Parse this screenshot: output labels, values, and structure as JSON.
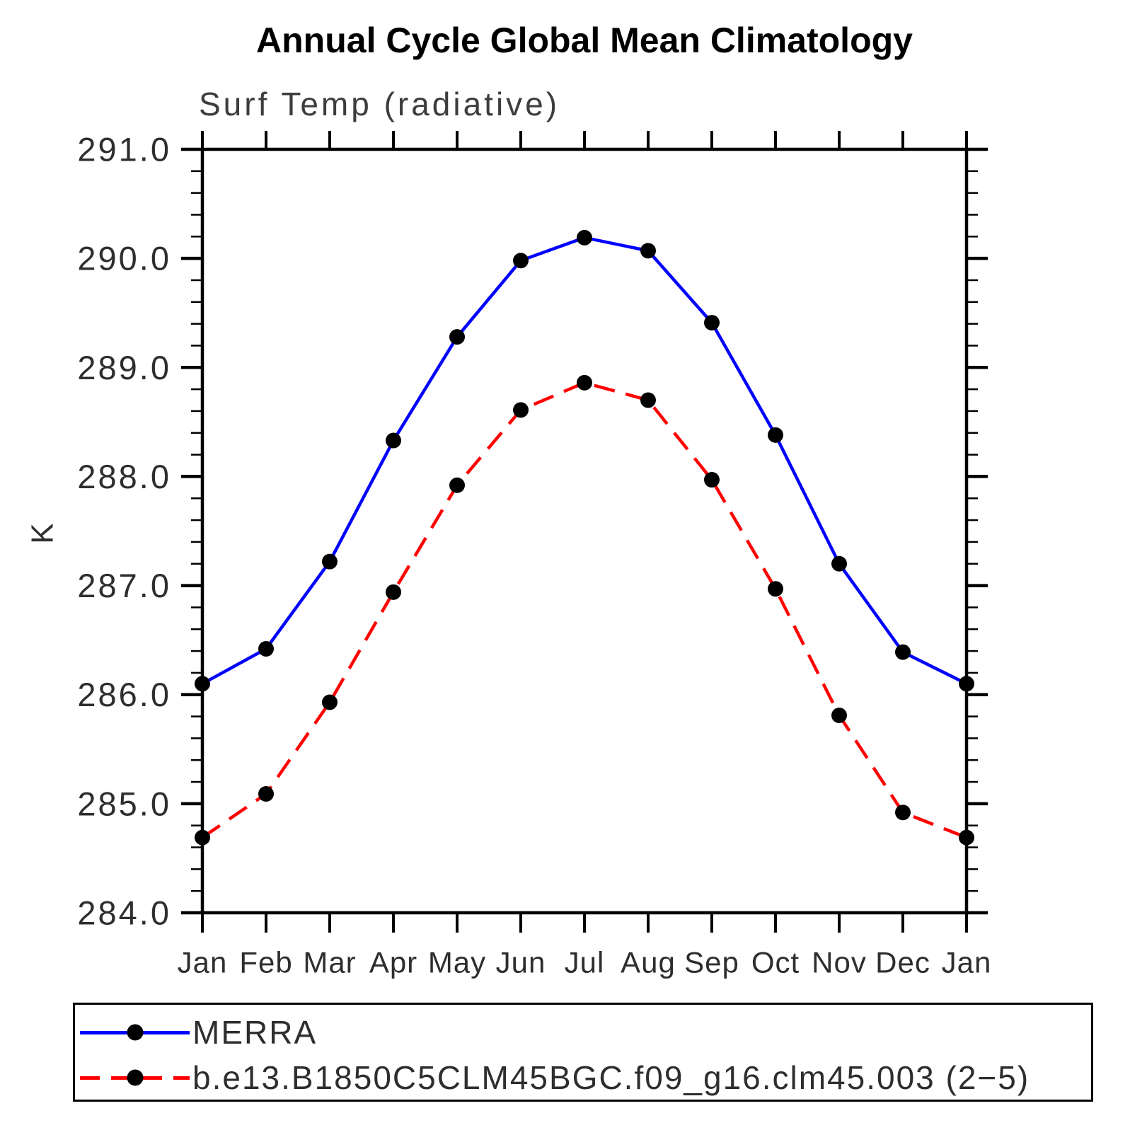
{
  "page": {
    "background": "#ffffff"
  },
  "chart_data": {
    "type": "line",
    "title": "Annual Cycle Global Mean Climatology",
    "subtitle": "Surf Temp (radiative)",
    "ylabel": "K",
    "xlabel": "",
    "categories": [
      "Jan",
      "Feb",
      "Mar",
      "Apr",
      "May",
      "Jun",
      "Jul",
      "Aug",
      "Sep",
      "Oct",
      "Nov",
      "Dec",
      "Jan"
    ],
    "ylim": [
      284.0,
      291.0
    ],
    "y_major_step": 1.0,
    "y_minor_step": 0.2,
    "y_tick_decimals": 1,
    "grid": false,
    "legend_position": "bottom-left-box",
    "marker": "filled-circle",
    "marker_color": "#000000",
    "series": [
      {
        "name": "MERRA",
        "color": "#0000ff",
        "line_style": "solid",
        "values": [
          286.1,
          286.42,
          287.22,
          288.33,
          289.28,
          289.98,
          290.19,
          290.07,
          289.41,
          288.38,
          287.2,
          286.39,
          286.1
        ]
      },
      {
        "name": "b.e13.B1850C5CLM45BGC.f09_g16.clm45.003 (2−5)",
        "color": "#ff0000",
        "line_style": "dashed",
        "values": [
          284.69,
          285.09,
          285.93,
          286.94,
          287.92,
          288.61,
          288.86,
          288.7,
          287.97,
          286.97,
          285.81,
          284.92,
          284.69
        ]
      }
    ]
  }
}
